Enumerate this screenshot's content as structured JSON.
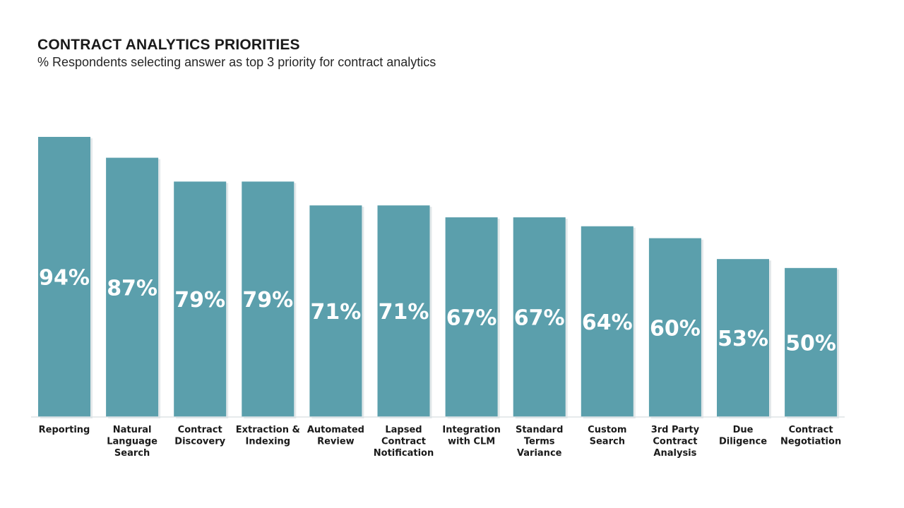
{
  "page": {
    "title": "CONTRACT ANALYTICS PRIORITIES",
    "subtitle": "% Respondents selecting answer as top 3 priority for contract analytics"
  },
  "chart_data": {
    "type": "bar",
    "title": "CONTRACT ANALYTICS PRIORITIES",
    "subtitle": "% Respondents selecting answer as top 3 priority for contract analytics",
    "categories": [
      [
        "Reporting"
      ],
      [
        "Natural",
        "Language",
        "Search"
      ],
      [
        "Contract",
        "Discovery"
      ],
      [
        "Extraction &",
        "Indexing"
      ],
      [
        "Automated",
        "Review"
      ],
      [
        "Lapsed",
        "Contract",
        "Notification"
      ],
      [
        "Integration",
        "with CLM"
      ],
      [
        "Standard",
        "Terms",
        "Variance"
      ],
      [
        "Custom",
        "Search"
      ],
      [
        "3rd Party",
        "Contract",
        "Analysis"
      ],
      [
        "Due",
        "Diligence"
      ],
      [
        "Contract",
        "Negotiation"
      ]
    ],
    "values": [
      94,
      87,
      79,
      79,
      71,
      71,
      67,
      67,
      64,
      60,
      53,
      50
    ],
    "value_labels": [
      "94%",
      "87%",
      "79%",
      "79%",
      "71%",
      "71%",
      "67%",
      "67%",
      "64%",
      "60%",
      "53%",
      "50%"
    ],
    "unit": "%",
    "ylim": [
      0,
      94
    ],
    "grid": false,
    "legend": "none",
    "colors": {
      "bar": "#5b9fac",
      "value_label": "#ffffff",
      "axis": "#dde3e6"
    }
  }
}
